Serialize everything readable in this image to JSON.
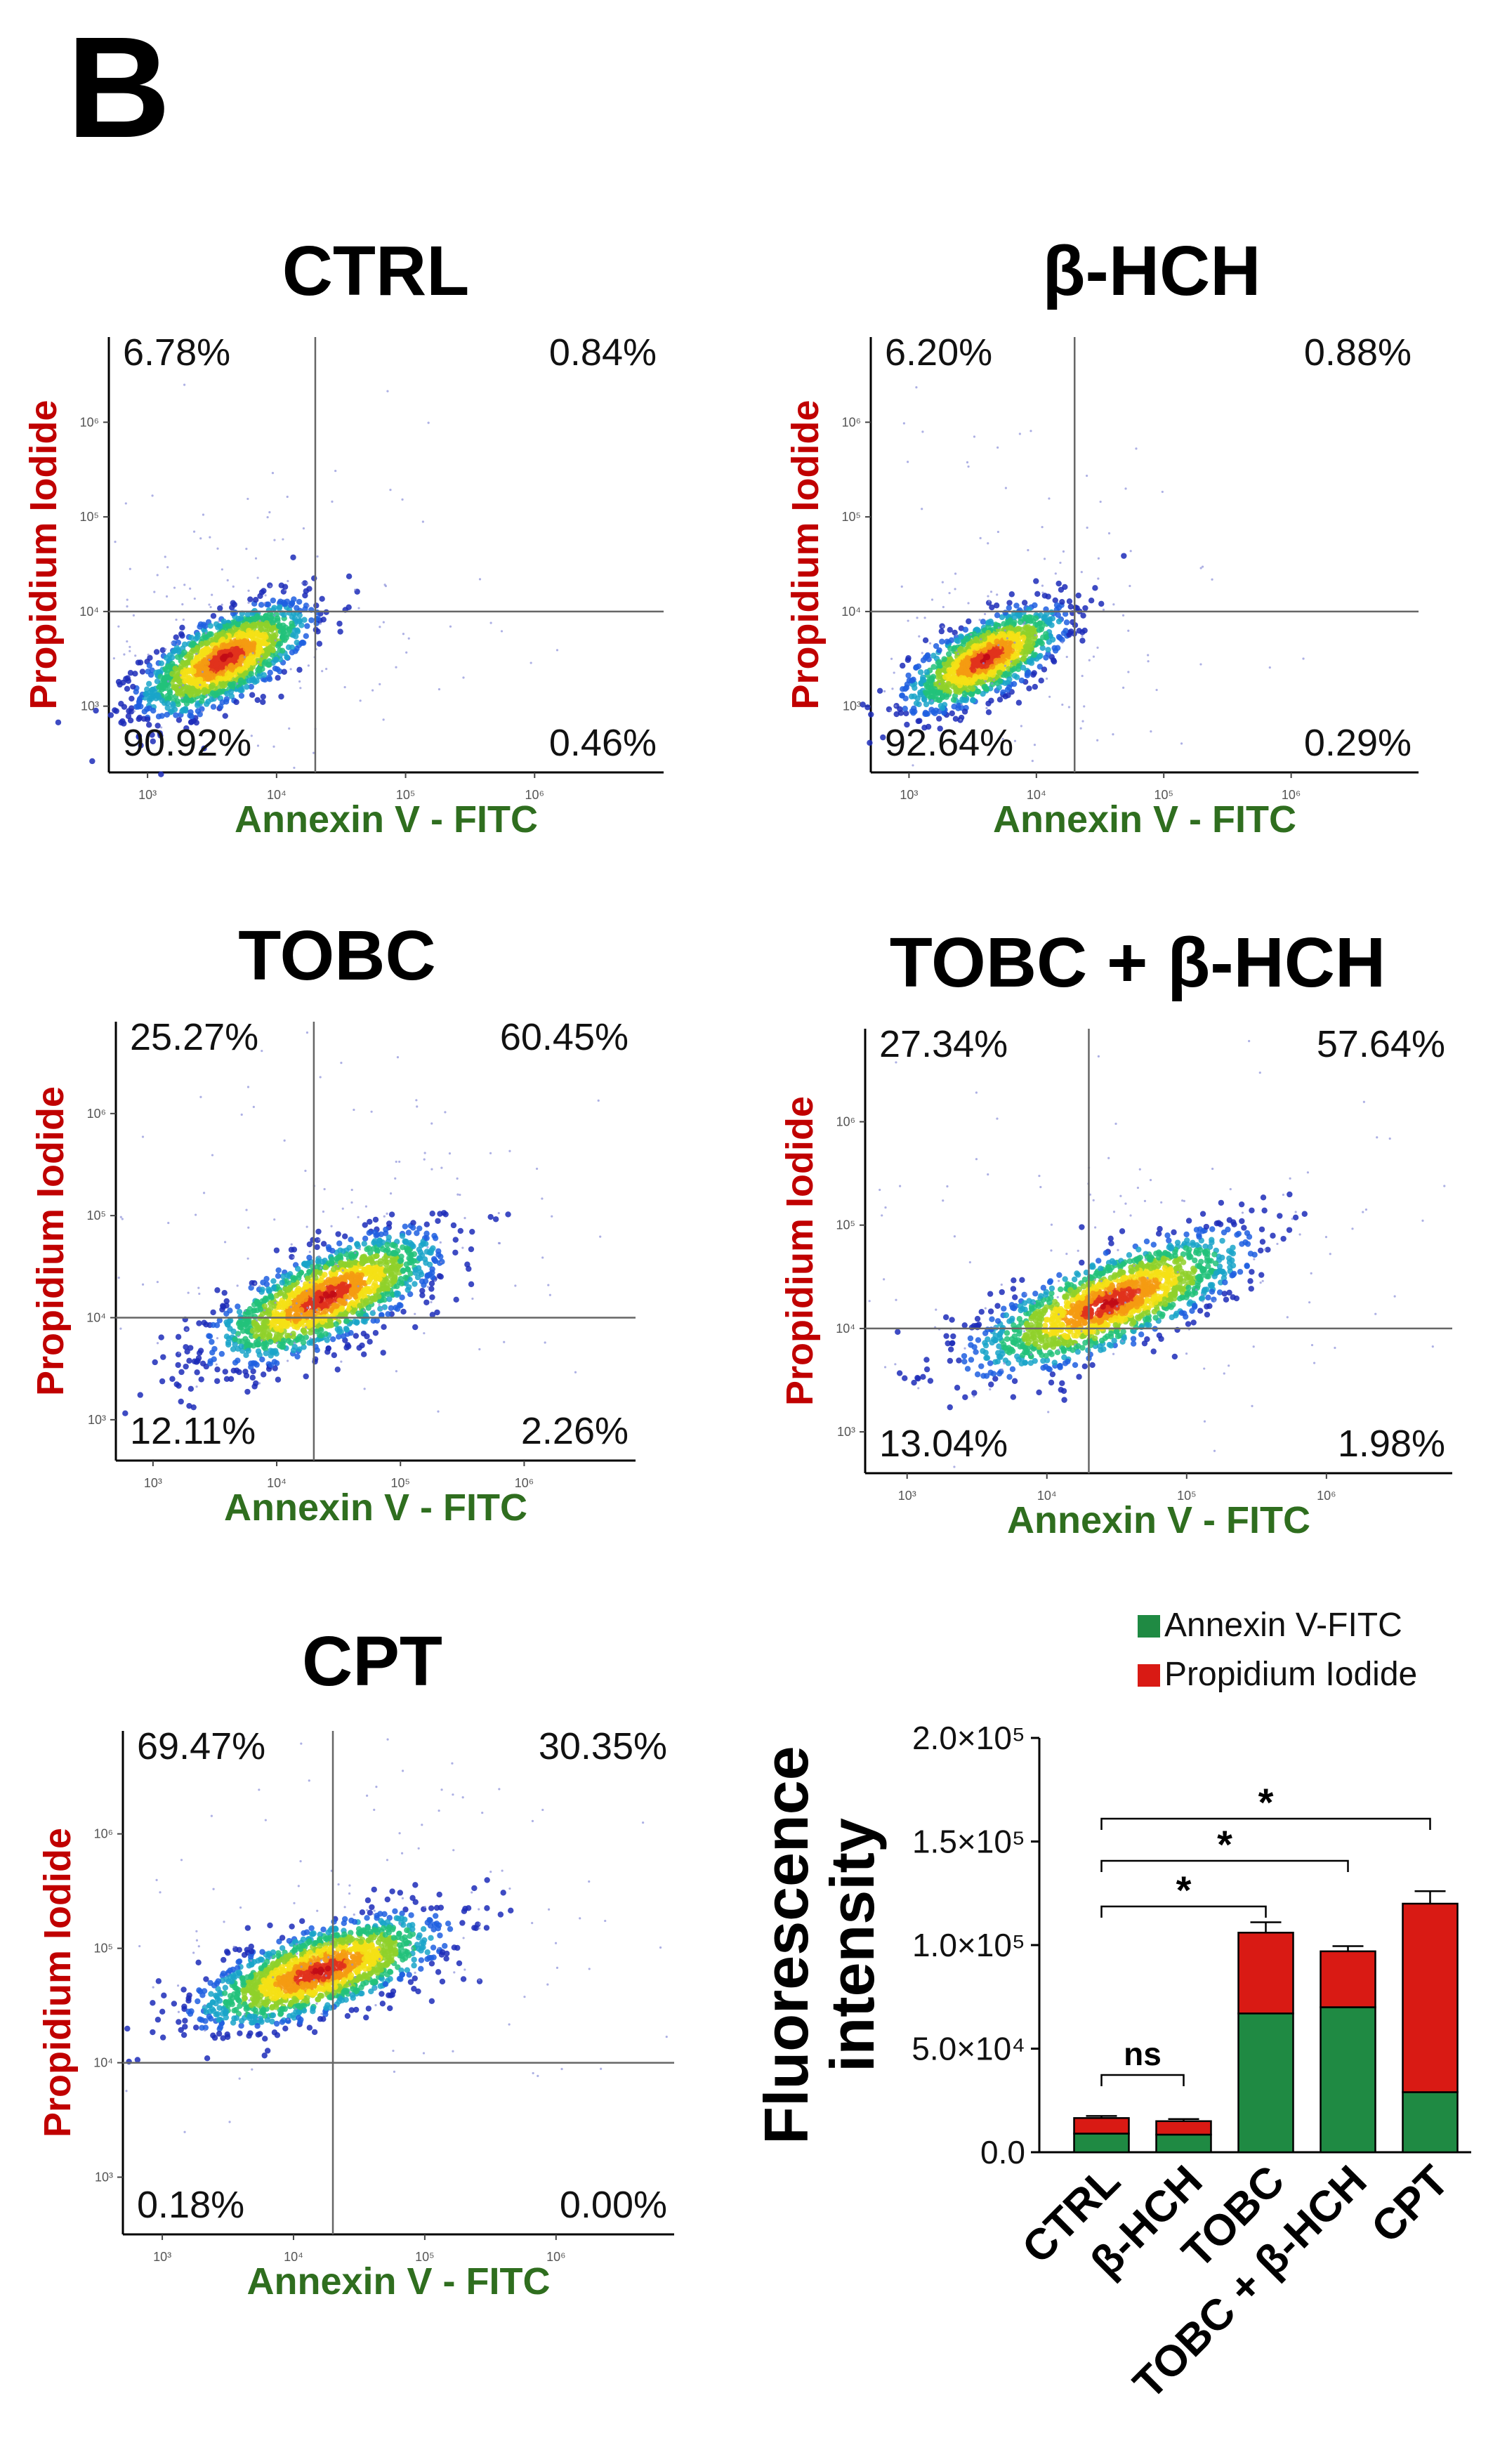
{
  "figure": {
    "panel_label": "B",
    "colors": {
      "annexin_green": "#2f6e1f",
      "pi_red": "#c00000",
      "bar_green": "#1f8a43",
      "bar_red": "#d91a14",
      "axis": "#000000",
      "quad_line": "#666666"
    }
  },
  "chart_data": [
    {
      "type": "scatter",
      "subtype": "flow-cytometry-density",
      "title": "CTRL",
      "xlabel": "Annexin V - FITC",
      "ylabel": "Propidium Iodide",
      "x_ticks": [
        "10³",
        "10⁴",
        "10⁵",
        "10⁶"
      ],
      "y_ticks": [
        "10³",
        "10⁴",
        "10⁵",
        "10⁶"
      ],
      "x_range_log10": [
        2.7,
        7.0
      ],
      "y_range_log10": [
        2.3,
        6.9
      ],
      "gate_log10": {
        "x": 4.3,
        "y": 4.0
      },
      "quadrants": {
        "upper_left": "6.78%",
        "upper_right": "0.84%",
        "lower_left": "90.92%",
        "lower_right": "0.46%"
      },
      "population": {
        "center_log10": [
          3.6,
          3.5
        ],
        "spread": [
          0.32,
          0.22
        ],
        "tilt": 0.6,
        "n": 1400
      }
    },
    {
      "type": "scatter",
      "subtype": "flow-cytometry-density",
      "title": "β-HCH",
      "xlabel": "Annexin V - FITC",
      "ylabel": "Propidium Iodide",
      "x_ticks": [
        "10³",
        "10⁴",
        "10⁵",
        "10⁶"
      ],
      "y_ticks": [
        "10³",
        "10⁴",
        "10⁵",
        "10⁶"
      ],
      "x_range_log10": [
        2.7,
        7.0
      ],
      "y_range_log10": [
        2.3,
        6.9
      ],
      "gate_log10": {
        "x": 4.3,
        "y": 4.0
      },
      "quadrants": {
        "upper_left": "6.20%",
        "upper_right": "0.88%",
        "lower_left": "92.64%",
        "lower_right": "0.29%"
      },
      "population": {
        "center_log10": [
          3.6,
          3.5
        ],
        "spread": [
          0.3,
          0.2
        ],
        "tilt": 0.6,
        "n": 1200
      }
    },
    {
      "type": "scatter",
      "subtype": "flow-cytometry-density",
      "title": "TOBC",
      "xlabel": "Annexin V - FITC",
      "ylabel": "Propidium Iodide",
      "x_ticks": [
        "10³",
        "10⁴",
        "10⁵",
        "10⁶"
      ],
      "y_ticks": [
        "10³",
        "10⁴",
        "10⁵",
        "10⁶"
      ],
      "x_range_log10": [
        2.7,
        6.9
      ],
      "y_range_log10": [
        2.6,
        6.9
      ],
      "gate_log10": {
        "x": 4.3,
        "y": 4.0
      },
      "quadrants": {
        "upper_left": "25.27%",
        "upper_right": "60.45%",
        "lower_left": "12.11%",
        "lower_right": "2.26%"
      },
      "population": {
        "center_log10": [
          4.4,
          4.2
        ],
        "spread": [
          0.45,
          0.22
        ],
        "tilt": 0.5,
        "n": 1500
      }
    },
    {
      "type": "scatter",
      "subtype": "flow-cytometry-density",
      "title": "TOBC + β-HCH",
      "xlabel": "Annexin V - FITC",
      "ylabel": "Propidium Iodide",
      "x_ticks": [
        "10³",
        "10⁴",
        "10⁵",
        "10⁶"
      ],
      "y_ticks": [
        "10³",
        "10⁴",
        "10⁵",
        "10⁶"
      ],
      "x_range_log10": [
        2.7,
        6.9
      ],
      "y_range_log10": [
        2.6,
        6.9
      ],
      "gate_log10": {
        "x": 4.3,
        "y": 4.0
      },
      "quadrants": {
        "upper_left": "27.34%",
        "upper_right": "57.64%",
        "lower_left": "13.04%",
        "lower_right": "1.98%"
      },
      "population": {
        "center_log10": [
          4.45,
          4.25
        ],
        "spread": [
          0.47,
          0.22
        ],
        "tilt": 0.5,
        "n": 1500
      }
    },
    {
      "type": "scatter",
      "subtype": "flow-cytometry-density",
      "title": "CPT",
      "xlabel": "Annexin V - FITC",
      "ylabel": "Propidium Iodide",
      "x_ticks": [
        "10³",
        "10⁴",
        "10⁵",
        "10⁶"
      ],
      "y_ticks": [
        "10³",
        "10⁴",
        "10⁵",
        "10⁶"
      ],
      "x_range_log10": [
        2.7,
        6.9
      ],
      "y_range_log10": [
        2.5,
        6.9
      ],
      "gate_log10": {
        "x": 4.3,
        "y": 4.0
      },
      "quadrants": {
        "upper_left": "69.47%",
        "upper_right": "30.35%",
        "lower_left": "0.18%",
        "lower_right": "0.00%"
      },
      "population": {
        "center_log10": [
          4.2,
          4.8
        ],
        "spread": [
          0.45,
          0.18
        ],
        "tilt": 0.35,
        "n": 1500
      }
    },
    {
      "type": "bar",
      "subtype": "stacked",
      "categories": [
        "CTRL",
        "β-HCH",
        "TOBC",
        "TOBC + β-HCH",
        "CPT"
      ],
      "series": [
        {
          "name": "Annexin V-FITC",
          "values": [
            9000,
            8500,
            67000,
            70000,
            29000
          ]
        },
        {
          "name": "Propidium Iodide",
          "values": [
            7500,
            6500,
            39000,
            27000,
            91000
          ]
        }
      ],
      "error": [
        1000,
        1000,
        5000,
        2500,
        6000
      ],
      "ylabel": "Fluorescence intensity",
      "ylabel_lines": [
        "Fluorescence",
        "intensity"
      ],
      "ylim": [
        0,
        200000
      ],
      "y_tick_values": [
        0,
        50000,
        100000,
        150000,
        200000
      ],
      "y_tick_labels": [
        "0.0",
        "5.0×10⁴",
        "1.0×10⁵",
        "1.5×10⁵",
        "2.0×10⁵"
      ],
      "legend_position": "top",
      "significance": [
        {
          "from": 0,
          "to": 1,
          "label": "ns"
        },
        {
          "from": 0,
          "to": 2,
          "label": "*"
        },
        {
          "from": 0,
          "to": 3,
          "label": "*"
        },
        {
          "from": 0,
          "to": 4,
          "label": "*"
        }
      ]
    }
  ]
}
